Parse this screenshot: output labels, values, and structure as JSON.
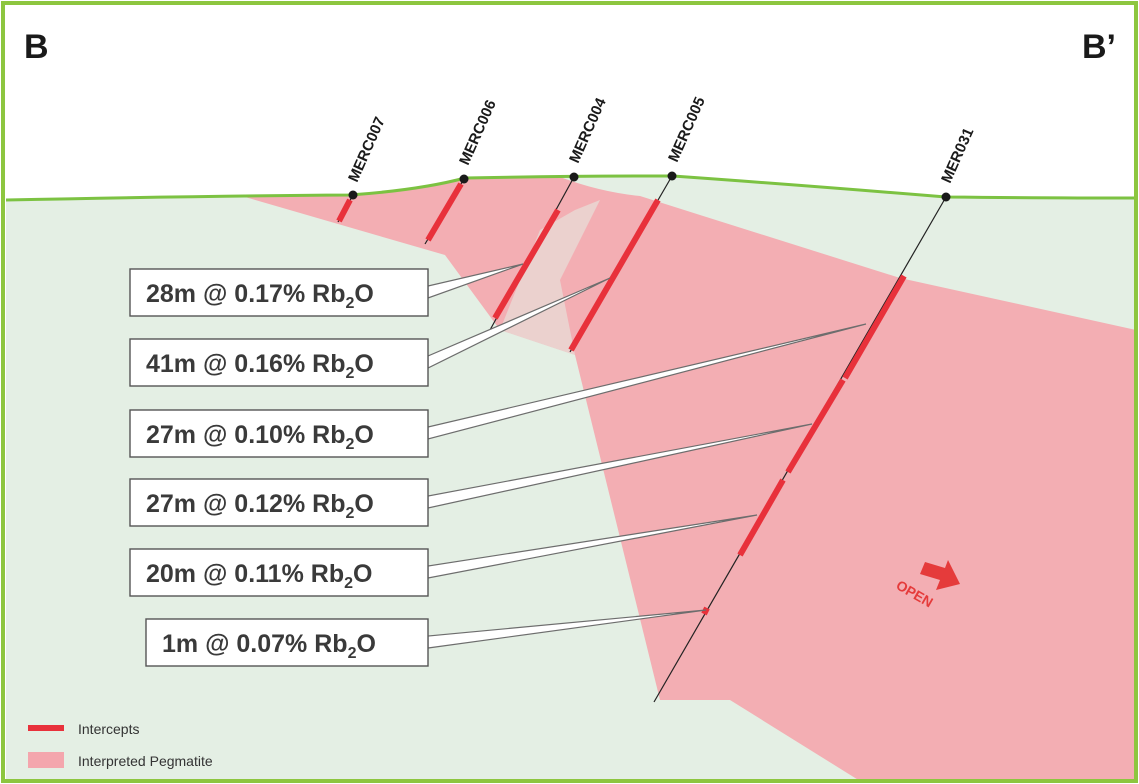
{
  "section": {
    "start_label": "B",
    "end_label": "B’"
  },
  "drillholes": [
    {
      "name": "MERC007"
    },
    {
      "name": "MERC006"
    },
    {
      "name": "MERC004"
    },
    {
      "name": "MERC005"
    },
    {
      "name": "MER031"
    }
  ],
  "callouts": [
    {
      "prefix": "28m @ 0.17% Rb",
      "sub": "2",
      "suffix": "O"
    },
    {
      "prefix": "41m @ 0.16% Rb",
      "sub": "2",
      "suffix": "O"
    },
    {
      "prefix": "27m @ 0.10% Rb",
      "sub": "2",
      "suffix": "O"
    },
    {
      "prefix": "27m @ 0.12% Rb",
      "sub": "2",
      "suffix": "O"
    },
    {
      "prefix": "20m @ 0.11% Rb",
      "sub": "2",
      "suffix": "O"
    },
    {
      "prefix": "1m @ 0.07% Rb",
      "sub": "2",
      "suffix": "O"
    }
  ],
  "open_label": "OPEN",
  "legend": {
    "intercepts": "Intercepts",
    "pegmatite": "Interpreted Pegmatite"
  },
  "colors": {
    "frame": "#8dc63f",
    "ground": "#e4efe4",
    "pegmatite": "#f4a6ad",
    "intercept": "#e8313b",
    "surface": "#7cc242"
  }
}
